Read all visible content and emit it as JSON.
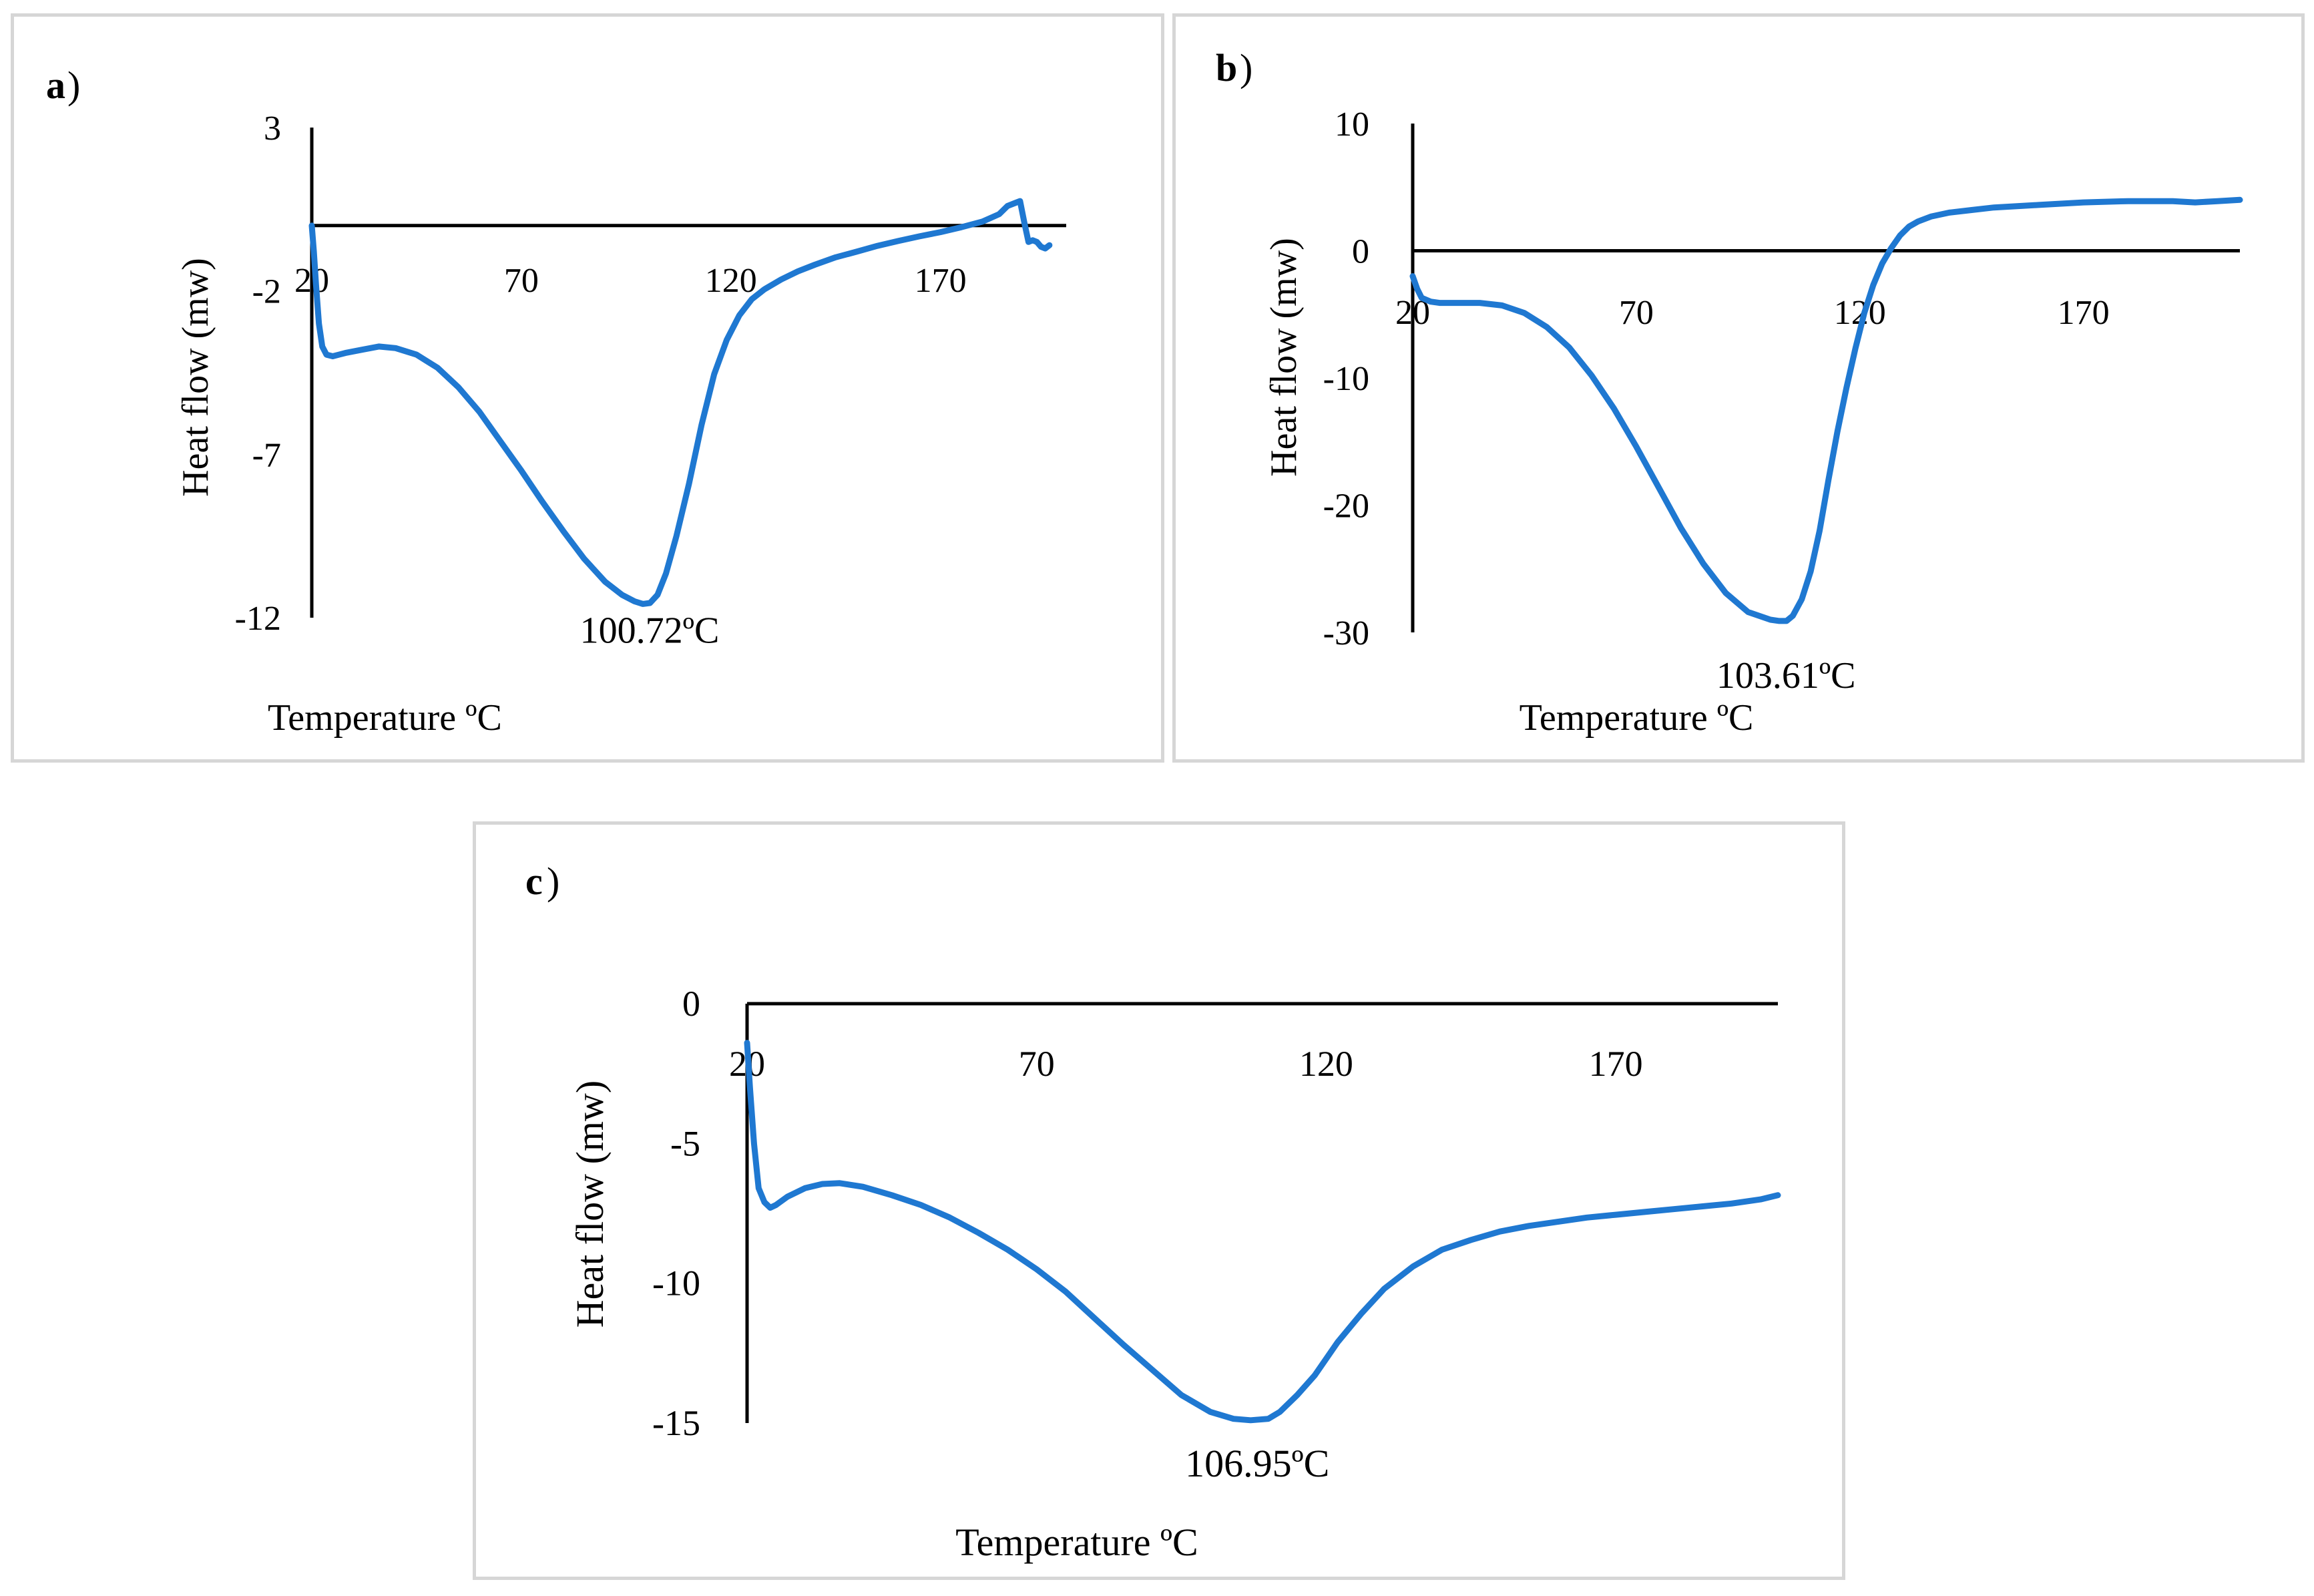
{
  "colors": {
    "series": "#1f78d1",
    "axis": "#000000",
    "frame": "#d6d6d6"
  },
  "chart_data": [
    {
      "panel_label": "a",
      "panel_paren": ")",
      "type": "line",
      "title": "",
      "xlabel": "Temperature ºC",
      "ylabel": "Heat flow (mw)",
      "xlim": [
        20,
        200
      ],
      "ylim": [
        -12,
        3
      ],
      "x_ticks": [
        20,
        70,
        120,
        170
      ],
      "y_ticks": [
        3,
        -2,
        -7,
        -12
      ],
      "peak_label": "100.72ºC",
      "series": [
        {
          "name": "a",
          "x": [
            20,
            20.5,
            21,
            21.7,
            22.5,
            23.5,
            25,
            28,
            32,
            36,
            40,
            45,
            50,
            55,
            60,
            65,
            70,
            75,
            80,
            85,
            90,
            94,
            97,
            99,
            100.7,
            102.5,
            104.5,
            107,
            110,
            113,
            116,
            119,
            122,
            125,
            128,
            132,
            136,
            140,
            145,
            150,
            155,
            160,
            165,
            170,
            175,
            180,
            184,
            186,
            188,
            189,
            190,
            191,
            192,
            193,
            194,
            195,
            196
          ],
          "y": [
            0,
            -0.8,
            -1.8,
            -3.0,
            -3.7,
            -3.95,
            -4.0,
            -3.9,
            -3.8,
            -3.7,
            -3.75,
            -3.95,
            -4.35,
            -4.95,
            -5.7,
            -6.6,
            -7.5,
            -8.45,
            -9.35,
            -10.2,
            -10.9,
            -11.3,
            -11.5,
            -11.58,
            -11.55,
            -11.3,
            -10.65,
            -9.5,
            -7.9,
            -6.1,
            -4.55,
            -3.5,
            -2.75,
            -2.25,
            -1.95,
            -1.65,
            -1.4,
            -1.2,
            -0.97,
            -0.8,
            -0.62,
            -0.47,
            -0.33,
            -0.2,
            -0.05,
            0.12,
            0.35,
            0.6,
            0.7,
            0.75,
            0.1,
            -0.5,
            -0.45,
            -0.5,
            -0.65,
            -0.7,
            -0.6
          ]
        }
      ]
    },
    {
      "panel_label": "b",
      "panel_paren": ")",
      "type": "line",
      "title": "",
      "xlabel": "Temperature ºC",
      "ylabel": "Heat flow (mw)",
      "xlim": [
        20,
        205
      ],
      "ylim": [
        -30,
        10
      ],
      "x_ticks": [
        20,
        70,
        120,
        170
      ],
      "y_ticks": [
        10,
        0,
        -10,
        -20,
        -30
      ],
      "peak_label": "103.61ºC",
      "series": [
        {
          "name": "b",
          "x": [
            20,
            21,
            22,
            24,
            26,
            30,
            35,
            40,
            45,
            50,
            55,
            60,
            65,
            70,
            75,
            80,
            85,
            90,
            95,
            100,
            102,
            103.6,
            105,
            107,
            109,
            111,
            113,
            115,
            117,
            119,
            121,
            123,
            125,
            127,
            129,
            131,
            133,
            136,
            140,
            145,
            150,
            160,
            170,
            180,
            190,
            195,
            200,
            205
          ],
          "y": [
            -2,
            -3,
            -3.7,
            -4.0,
            -4.1,
            -4.1,
            -4.1,
            -4.3,
            -4.9,
            -6.0,
            -7.6,
            -9.8,
            -12.4,
            -15.4,
            -18.6,
            -21.8,
            -24.6,
            -26.9,
            -28.4,
            -29,
            -29.1,
            -29.1,
            -28.7,
            -27.4,
            -25.2,
            -22.0,
            -18.0,
            -14.2,
            -10.8,
            -7.7,
            -4.9,
            -2.7,
            -1.0,
            0.2,
            1.2,
            1.9,
            2.3,
            2.7,
            3.0,
            3.2,
            3.4,
            3.6,
            3.8,
            3.9,
            3.9,
            3.8,
            3.9,
            4.0
          ]
        }
      ]
    },
    {
      "panel_label": "c",
      "panel_paren": ")",
      "type": "line",
      "title": "",
      "xlabel": "Temperature ºC",
      "ylabel": "Heat flow (mw)",
      "xlim": [
        20,
        198
      ],
      "ylim": [
        -15,
        0
      ],
      "x_ticks": [
        20,
        70,
        120,
        170
      ],
      "y_ticks": [
        0,
        -5,
        -10,
        -15
      ],
      "peak_label": "106.95ºC",
      "series": [
        {
          "name": "c",
          "x": [
            20,
            20.5,
            21.2,
            22,
            23,
            24,
            25,
            27,
            30,
            33,
            36,
            40,
            45,
            50,
            55,
            60,
            65,
            70,
            75,
            80,
            85,
            90,
            95,
            100,
            104,
            106.95,
            110,
            112,
            115,
            118,
            122,
            126,
            130,
            135,
            140,
            145,
            150,
            155,
            160,
            165,
            170,
            175,
            180,
            185,
            190,
            195,
            198
          ],
          "y": [
            -1.4,
            -3.0,
            -5.0,
            -6.6,
            -7.1,
            -7.3,
            -7.2,
            -6.9,
            -6.6,
            -6.45,
            -6.42,
            -6.55,
            -6.85,
            -7.2,
            -7.65,
            -8.2,
            -8.8,
            -9.5,
            -10.3,
            -11.25,
            -12.2,
            -13.1,
            -14.0,
            -14.6,
            -14.85,
            -14.9,
            -14.85,
            -14.6,
            -14.0,
            -13.3,
            -12.1,
            -11.1,
            -10.2,
            -9.4,
            -8.8,
            -8.45,
            -8.15,
            -7.95,
            -7.8,
            -7.65,
            -7.55,
            -7.45,
            -7.35,
            -7.25,
            -7.15,
            -7.0,
            -6.85
          ]
        }
      ]
    }
  ]
}
